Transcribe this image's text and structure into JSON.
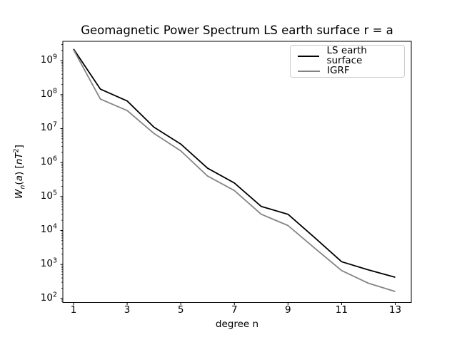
{
  "figure_background": "#ffffff",
  "axes": {
    "spine_color": "#000000",
    "legend_border_color": "#cccccc"
  },
  "chart_data": {
    "type": "line",
    "title": "Geomagnetic Power Spectrum LS earth surface r = a",
    "xlabel": "degree n",
    "ylabel": "W_n(a) [nT^2]",
    "ylabel_parts": [
      {
        "t": "W",
        "style": "italic"
      },
      {
        "t": "n",
        "style": "sub"
      },
      {
        "t": "(",
        "style": "normal"
      },
      {
        "t": "a",
        "style": "italic"
      },
      {
        "t": ") [",
        "style": "normal"
      },
      {
        "t": "nT",
        "style": "italic"
      },
      {
        "t": "2",
        "style": "sup"
      },
      {
        "t": "]",
        "style": "normal"
      }
    ],
    "yscale": "log",
    "grid": false,
    "legend_position": "upper right",
    "x": [
      1,
      2,
      3,
      4,
      5,
      6,
      7,
      8,
      9,
      10,
      11,
      12,
      13
    ],
    "series": [
      {
        "name": "LS earth surface",
        "color": "#000000",
        "values": [
          2200000000.0,
          145000000.0,
          65000000.0,
          11000000.0,
          3500000.0,
          680000.0,
          250000.0,
          51000.0,
          30000.0,
          6100.0,
          1200.0,
          690.0,
          420.0
        ]
      },
      {
        "name": "IGRF",
        "color": "#848484",
        "values": [
          2100000000.0,
          74000000.0,
          34000000.0,
          7200000.0,
          2200000.0,
          400000.0,
          150000.0,
          30000.0,
          14000.0,
          3000.0,
          660.0,
          280.0,
          160.0
        ]
      }
    ],
    "xticks": [
      1,
      3,
      5,
      7,
      9,
      11,
      13
    ],
    "yticks_exponents": [
      2,
      3,
      4,
      5,
      6,
      7,
      8,
      9
    ],
    "xlim": [
      0.6,
      13.6
    ],
    "ylim_log10": [
      1.88,
      9.57
    ]
  }
}
